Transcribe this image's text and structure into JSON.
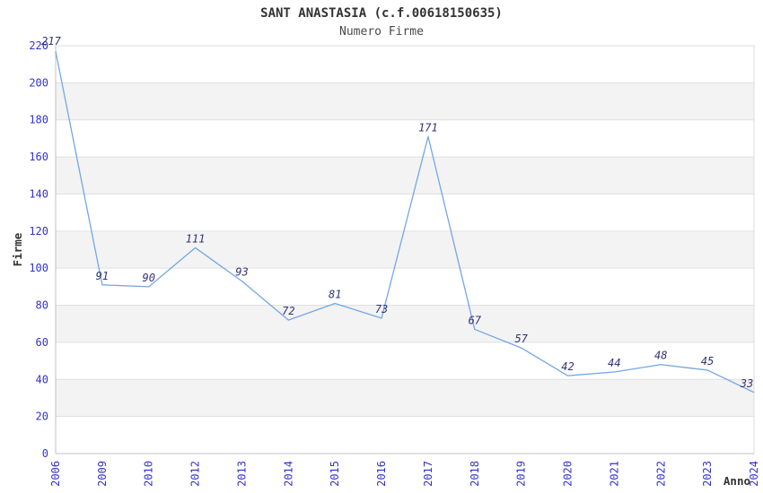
{
  "chart_data": {
    "type": "line",
    "title": "SANT ANASTASIA (c.f.00618150635)",
    "subtitle": "Numero Firme",
    "xlabel": "Anno",
    "ylabel": "Firme",
    "categories": [
      "2006",
      "2009",
      "2010",
      "2012",
      "2013",
      "2014",
      "2015",
      "2016",
      "2017",
      "2018",
      "2019",
      "2020",
      "2021",
      "2022",
      "2023",
      "2024"
    ],
    "values": [
      217,
      91,
      90,
      111,
      93,
      72,
      81,
      73,
      171,
      67,
      57,
      42,
      44,
      48,
      45,
      33
    ],
    "ylim": [
      0,
      220
    ],
    "ytick_step": 20,
    "yticks": [
      0,
      20,
      40,
      60,
      80,
      100,
      120,
      140,
      160,
      180,
      200,
      220
    ],
    "grid": "horizontal-alternating-bands",
    "legend_position": "none",
    "data_labels_visible": true
  },
  "colors": {
    "background": "#ffffff",
    "line": "#74a7e3",
    "tick_label": "#3333cc",
    "data_label": "#333377",
    "title": "#333333",
    "subtitle": "#4a4a4a",
    "axis_title": "#333333",
    "band": "#f3f3f3",
    "gridline": "#e0e0e0",
    "border": "#dcdcdc",
    "axis_line": "#c0c0c0"
  }
}
